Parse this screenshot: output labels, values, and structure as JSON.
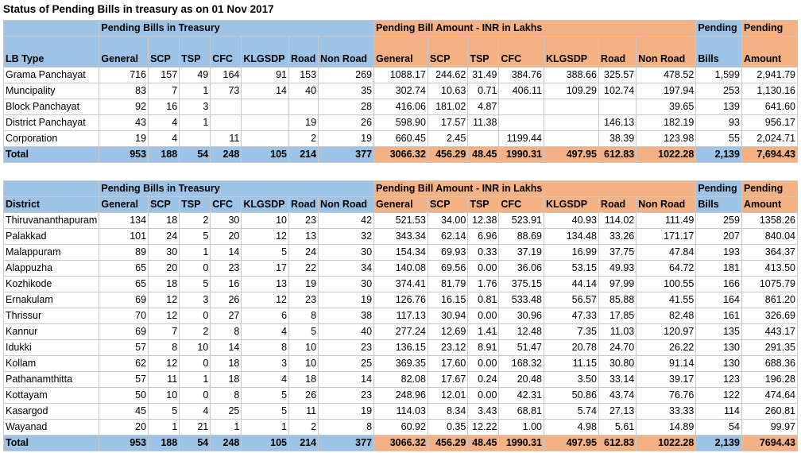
{
  "title": "Status of Pending Bills in treasury as on 01 Nov 2017",
  "group_treasury": "Pending Bills in Treasury",
  "group_amount": "Pending Bill Amount - INR in Lakhs",
  "pending_label": "Pending",
  "bills_label": "Bills",
  "amount_label": "Amount",
  "cols_treasury": [
    "General",
    "SCP",
    "TSP",
    "CFC",
    "KLGSDP",
    "Road",
    "Non Road"
  ],
  "cols_amount": [
    "General",
    "SCP",
    "TSP",
    "CFC",
    "KLGSDP",
    "Road",
    "Non Road"
  ],
  "table1": {
    "first_header": "LB Type",
    "rows": [
      {
        "name": "Grama Panchayat",
        "t": [
          "716",
          "157",
          "49",
          "164",
          "91",
          "153",
          "269"
        ],
        "a": [
          "1088.17",
          "244.62",
          "31.49",
          "384.76",
          "388.66",
          "325.57",
          "478.52"
        ],
        "bills": "1,599",
        "amount": "2,941.79"
      },
      {
        "name": "Muncipality",
        "t": [
          "83",
          "7",
          "1",
          "73",
          "14",
          "40",
          "35"
        ],
        "a": [
          "302.74",
          "10.63",
          "0.71",
          "406.11",
          "109.29",
          "102.74",
          "197.94"
        ],
        "bills": "253",
        "amount": "1,130.16"
      },
      {
        "name": "Block Panchayat",
        "t": [
          "92",
          "16",
          "3",
          "",
          "",
          "",
          "28"
        ],
        "a": [
          "416.06",
          "181.02",
          "4.87",
          "",
          "",
          "",
          "39.65"
        ],
        "bills": "139",
        "amount": "641.60"
      },
      {
        "name": "District Panchayat",
        "t": [
          "43",
          "4",
          "1",
          "",
          "",
          "19",
          "26"
        ],
        "a": [
          "598.90",
          "17.57",
          "11.38",
          "",
          "",
          "146.13",
          "182.19"
        ],
        "bills": "93",
        "amount": "956.17"
      },
      {
        "name": "Corporation",
        "t": [
          "19",
          "4",
          "",
          "11",
          "",
          "2",
          "19"
        ],
        "a": [
          "660.45",
          "2.45",
          "",
          "1199.44",
          "",
          "38.39",
          "123.98"
        ],
        "bills": "55",
        "amount": "2,024.71"
      }
    ],
    "total": {
      "name": "Total",
      "t": [
        "953",
        "188",
        "54",
        "248",
        "105",
        "214",
        "377"
      ],
      "a": [
        "3066.32",
        "456.29",
        "48.45",
        "1990.31",
        "497.95",
        "612.83",
        "1022.28"
      ],
      "bills": "2,139",
      "amount": "7,694.43"
    }
  },
  "table2": {
    "first_header": "District",
    "rows": [
      {
        "name": "Thiruvananthapuram",
        "t": [
          "134",
          "18",
          "2",
          "30",
          "10",
          "23",
          "42"
        ],
        "a": [
          "521.53",
          "34.00",
          "12.38",
          "523.91",
          "40.93",
          "114.02",
          "111.49"
        ],
        "bills": "259",
        "amount": "1358.26"
      },
      {
        "name": "Palakkad",
        "t": [
          "101",
          "24",
          "5",
          "20",
          "12",
          "13",
          "32"
        ],
        "a": [
          "343.34",
          "62.14",
          "6.96",
          "88.69",
          "134.48",
          "33.26",
          "171.17"
        ],
        "bills": "207",
        "amount": "840.04"
      },
      {
        "name": "Malappuram",
        "t": [
          "89",
          "30",
          "1",
          "14",
          "5",
          "24",
          "30"
        ],
        "a": [
          "154.34",
          "69.93",
          "0.33",
          "37.19",
          "16.99",
          "37.75",
          "47.84"
        ],
        "bills": "193",
        "amount": "364.37"
      },
      {
        "name": "Alappuzha",
        "t": [
          "65",
          "20",
          "0",
          "23",
          "17",
          "22",
          "34"
        ],
        "a": [
          "140.08",
          "69.56",
          "0.00",
          "36.06",
          "53.15",
          "49.93",
          "64.72"
        ],
        "bills": "181",
        "amount": "413.50"
      },
      {
        "name": "Kozhikode",
        "t": [
          "65",
          "18",
          "5",
          "16",
          "13",
          "19",
          "30"
        ],
        "a": [
          "374.41",
          "81.79",
          "1.76",
          "375.15",
          "44.14",
          "97.99",
          "100.55"
        ],
        "bills": "166",
        "amount": "1075.79"
      },
      {
        "name": "Ernakulam",
        "t": [
          "69",
          "12",
          "3",
          "26",
          "12",
          "23",
          "19"
        ],
        "a": [
          "126.76",
          "16.15",
          "0.81",
          "533.48",
          "56.57",
          "85.88",
          "41.55"
        ],
        "bills": "164",
        "amount": "861.20"
      },
      {
        "name": "Thrissur",
        "t": [
          "70",
          "12",
          "0",
          "27",
          "6",
          "8",
          "38"
        ],
        "a": [
          "117.13",
          "30.94",
          "0.00",
          "30.96",
          "47.33",
          "17.85",
          "82.48"
        ],
        "bills": "161",
        "amount": "326.69"
      },
      {
        "name": "Kannur",
        "t": [
          "69",
          "7",
          "2",
          "8",
          "4",
          "5",
          "40"
        ],
        "a": [
          "277.24",
          "12.69",
          "1.41",
          "12.48",
          "7.35",
          "11.03",
          "120.97"
        ],
        "bills": "135",
        "amount": "443.17"
      },
      {
        "name": "Idukki",
        "t": [
          "57",
          "8",
          "10",
          "14",
          "8",
          "10",
          "23"
        ],
        "a": [
          "136.15",
          "23.12",
          "8.91",
          "51.47",
          "20.78",
          "24.70",
          "26.22"
        ],
        "bills": "130",
        "amount": "291.35"
      },
      {
        "name": "Kollam",
        "t": [
          "62",
          "12",
          "0",
          "18",
          "3",
          "10",
          "25"
        ],
        "a": [
          "369.35",
          "17.60",
          "0.00",
          "168.32",
          "11.15",
          "30.80",
          "91.14"
        ],
        "bills": "130",
        "amount": "688.36"
      },
      {
        "name": "Pathanamthitta",
        "t": [
          "57",
          "11",
          "1",
          "18",
          "4",
          "18",
          "14"
        ],
        "a": [
          "82.08",
          "17.67",
          "0.24",
          "20.48",
          "3.50",
          "33.14",
          "39.17"
        ],
        "bills": "123",
        "amount": "196.28"
      },
      {
        "name": "Kottayam",
        "t": [
          "50",
          "10",
          "0",
          "8",
          "5",
          "26",
          "23"
        ],
        "a": [
          "248.96",
          "12.01",
          "0.00",
          "42.31",
          "50.86",
          "43.74",
          "76.76"
        ],
        "bills": "122",
        "amount": "474.64"
      },
      {
        "name": "Kasargod",
        "t": [
          "45",
          "5",
          "4",
          "25",
          "5",
          "11",
          "19"
        ],
        "a": [
          "114.03",
          "8.34",
          "3.43",
          "68.81",
          "5.74",
          "27.13",
          "33.33"
        ],
        "bills": "114",
        "amount": "260.81"
      },
      {
        "name": "Wayanad",
        "t": [
          "20",
          "1",
          "21",
          "1",
          "1",
          "2",
          "8"
        ],
        "a": [
          "60.92",
          "0.35",
          "12.22",
          "1.00",
          "4.98",
          "5.61",
          "14.89"
        ],
        "bills": "54",
        "amount": "99.97"
      }
    ],
    "total": {
      "name": "Total",
      "t": [
        "953",
        "188",
        "54",
        "248",
        "105",
        "214",
        "377"
      ],
      "a": [
        "3066.32",
        "456.29",
        "48.45",
        "1990.31",
        "497.95",
        "612.83",
        "1022.28"
      ],
      "bills": "2,139",
      "amount": "7694.43"
    }
  }
}
